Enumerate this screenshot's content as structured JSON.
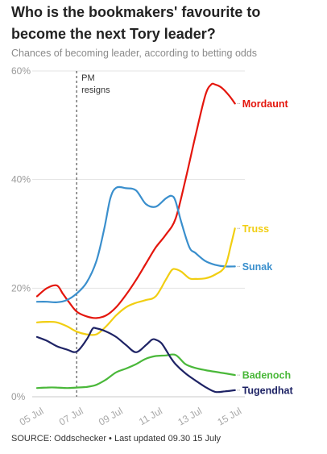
{
  "title": "Who is the bookmakers' favourite to become the next Tory leader?",
  "subtitle": "Chances of becoming leader, according to betting odds",
  "source": "SOURCE: Oddschecker • Last updated 09.30 15 July",
  "chart_data": {
    "type": "line",
    "title": "Who is the bookmakers' favourite to become the next Tory leader?",
    "subtitle": "Chances of becoming leader, according to betting odds",
    "xlabel": "",
    "ylabel": "",
    "x_ticks": [
      "05 Jul",
      "07 Jul",
      "09 Jul",
      "11 Jul",
      "13 Jul",
      "15 Jul"
    ],
    "y_ticks": [
      "0%",
      "20%",
      "40%",
      "60%"
    ],
    "xlim": [
      5.0,
      15.5
    ],
    "ylim": [
      0,
      60
    ],
    "grid": "horizontal",
    "annotation": {
      "x": 7.0,
      "label_lines": [
        "PM",
        "resigns"
      ]
    },
    "series": [
      {
        "name": "Mordaunt",
        "color": "#e4160d",
        "points": [
          [
            5.0,
            18.5
          ],
          [
            5.5,
            20.0
          ],
          [
            6.0,
            20.5
          ],
          [
            6.3,
            19.0
          ],
          [
            6.6,
            17.5
          ],
          [
            7.0,
            15.7
          ],
          [
            7.5,
            14.8
          ],
          [
            8.0,
            14.5
          ],
          [
            8.5,
            15.0
          ],
          [
            9.0,
            16.5
          ],
          [
            9.5,
            18.8
          ],
          [
            10.0,
            21.5
          ],
          [
            10.5,
            24.5
          ],
          [
            11.0,
            27.5
          ],
          [
            11.5,
            29.8
          ],
          [
            12.0,
            32.8
          ],
          [
            12.5,
            40.0
          ],
          [
            13.0,
            48.0
          ],
          [
            13.5,
            55.5
          ],
          [
            13.8,
            57.5
          ],
          [
            14.0,
            57.5
          ],
          [
            14.3,
            57.0
          ],
          [
            14.7,
            55.5
          ],
          [
            15.0,
            54.0
          ]
        ]
      },
      {
        "name": "Sunak",
        "color": "#3a8fcd",
        "points": [
          [
            5.0,
            17.5
          ],
          [
            5.5,
            17.5
          ],
          [
            6.0,
            17.4
          ],
          [
            6.5,
            17.8
          ],
          [
            7.0,
            19.0
          ],
          [
            7.5,
            21.0
          ],
          [
            8.0,
            25.0
          ],
          [
            8.4,
            31.0
          ],
          [
            8.7,
            36.5
          ],
          [
            9.0,
            38.5
          ],
          [
            9.5,
            38.4
          ],
          [
            10.0,
            38.0
          ],
          [
            10.5,
            35.5
          ],
          [
            11.0,
            35.0
          ],
          [
            11.5,
            36.5
          ],
          [
            11.8,
            37.0
          ],
          [
            12.0,
            36.0
          ],
          [
            12.3,
            32.0
          ],
          [
            12.7,
            27.5
          ],
          [
            13.0,
            26.5
          ],
          [
            13.5,
            25.0
          ],
          [
            14.0,
            24.3
          ],
          [
            14.5,
            24.0
          ],
          [
            15.0,
            24.0
          ]
        ]
      },
      {
        "name": "Truss",
        "color": "#f1ce12",
        "points": [
          [
            5.0,
            13.7
          ],
          [
            5.5,
            13.8
          ],
          [
            6.0,
            13.7
          ],
          [
            6.5,
            13.0
          ],
          [
            7.0,
            12.0
          ],
          [
            7.5,
            11.5
          ],
          [
            8.0,
            11.5
          ],
          [
            8.5,
            13.0
          ],
          [
            9.0,
            15.0
          ],
          [
            9.5,
            16.5
          ],
          [
            10.0,
            17.3
          ],
          [
            10.5,
            17.8
          ],
          [
            11.0,
            18.5
          ],
          [
            11.5,
            21.5
          ],
          [
            11.8,
            23.3
          ],
          [
            12.0,
            23.5
          ],
          [
            12.3,
            23.0
          ],
          [
            12.7,
            21.8
          ],
          [
            13.0,
            21.7
          ],
          [
            13.5,
            21.8
          ],
          [
            14.0,
            22.5
          ],
          [
            14.5,
            24.0
          ],
          [
            14.8,
            28.0
          ],
          [
            15.0,
            31.0
          ]
        ]
      },
      {
        "name": "Badenoch",
        "color": "#4ab83a",
        "points": [
          [
            5.0,
            1.6
          ],
          [
            5.5,
            1.7
          ],
          [
            6.0,
            1.7
          ],
          [
            6.5,
            1.6
          ],
          [
            7.0,
            1.7
          ],
          [
            7.5,
            1.8
          ],
          [
            8.0,
            2.2
          ],
          [
            8.5,
            3.2
          ],
          [
            9.0,
            4.5
          ],
          [
            9.5,
            5.2
          ],
          [
            10.0,
            6.0
          ],
          [
            10.5,
            7.0
          ],
          [
            11.0,
            7.5
          ],
          [
            11.5,
            7.6
          ],
          [
            12.0,
            7.7
          ],
          [
            12.5,
            6.0
          ],
          [
            13.0,
            5.3
          ],
          [
            13.5,
            4.9
          ],
          [
            14.0,
            4.6
          ],
          [
            14.5,
            4.3
          ],
          [
            15.0,
            4.0
          ]
        ]
      },
      {
        "name": "Tugendhat",
        "color": "#1e2365",
        "points": [
          [
            5.0,
            11.0
          ],
          [
            5.5,
            10.3
          ],
          [
            6.0,
            9.3
          ],
          [
            6.5,
            8.7
          ],
          [
            7.0,
            8.3
          ],
          [
            7.5,
            10.5
          ],
          [
            7.8,
            12.5
          ],
          [
            8.0,
            12.6
          ],
          [
            8.5,
            12.0
          ],
          [
            9.0,
            11.0
          ],
          [
            9.5,
            9.5
          ],
          [
            10.0,
            8.2
          ],
          [
            10.5,
            9.5
          ],
          [
            10.8,
            10.5
          ],
          [
            11.0,
            10.5
          ],
          [
            11.3,
            9.8
          ],
          [
            11.7,
            7.5
          ],
          [
            12.0,
            6.0
          ],
          [
            12.5,
            4.3
          ],
          [
            13.0,
            3.0
          ],
          [
            13.5,
            1.8
          ],
          [
            14.0,
            0.9
          ],
          [
            14.5,
            1.0
          ],
          [
            15.0,
            1.2
          ]
        ]
      }
    ]
  }
}
